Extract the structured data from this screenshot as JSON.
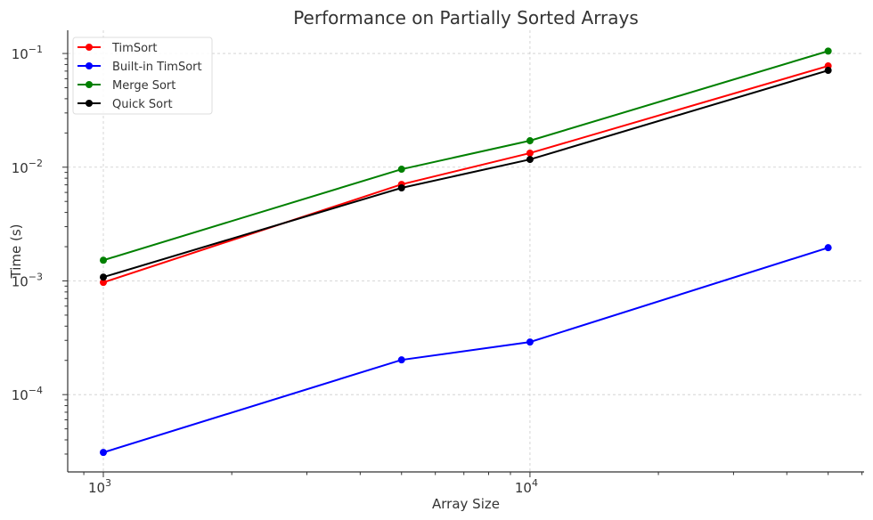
{
  "chart_data": {
    "type": "line",
    "title": "Performance on Partially Sorted Arrays",
    "xlabel": "Array Size",
    "ylabel": "Time (s)",
    "xscale": "log",
    "yscale": "log",
    "xlim": [
      825,
      60700
    ],
    "ylim": [
      2.09e-05,
      0.16
    ],
    "grid": true,
    "legend": "top-left",
    "x": [
      1000,
      5000,
      10000,
      50000
    ],
    "x_ticks": [
      {
        "value": 1000,
        "base": "10",
        "exp": "3"
      },
      {
        "value": 10000,
        "base": "10",
        "exp": "4"
      }
    ],
    "y_ticks": [
      {
        "value": 0.1,
        "base": "10",
        "exp": "−1"
      },
      {
        "value": 0.01,
        "base": "10",
        "exp": "−2"
      },
      {
        "value": 0.001,
        "base": "10",
        "exp": "−3"
      },
      {
        "value": 0.0001,
        "base": "10",
        "exp": "−4"
      }
    ],
    "series": [
      {
        "name": "TimSort",
        "color": "#ff0000",
        "values": [
          0.00097,
          0.00706,
          0.0133,
          0.0777
        ]
      },
      {
        "name": "Built-in TimSort",
        "color": "#0000ff",
        "values": [
          3.1e-05,
          0.000202,
          0.00029,
          0.00196
        ]
      },
      {
        "name": "Merge Sort",
        "color": "#008000",
        "values": [
          0.00152,
          0.0096,
          0.0171,
          0.105
        ]
      },
      {
        "name": "Quick Sort",
        "color": "#000000",
        "values": [
          0.00108,
          0.00658,
          0.0117,
          0.071
        ]
      }
    ]
  }
}
